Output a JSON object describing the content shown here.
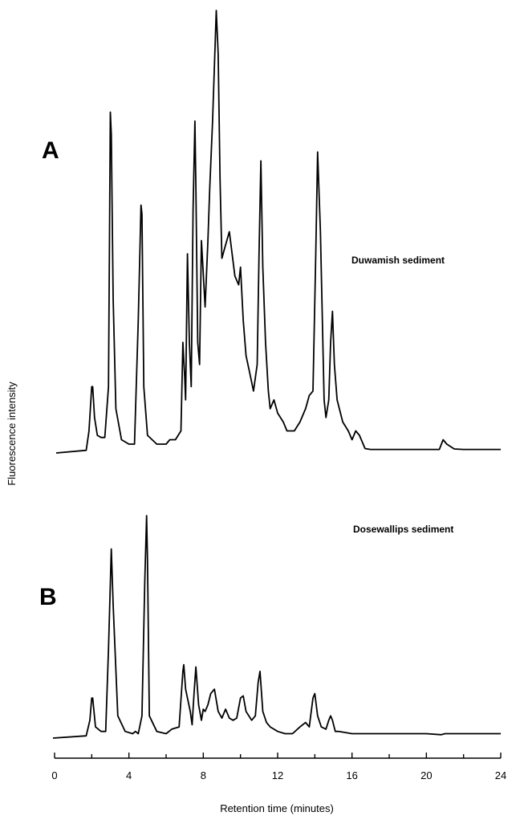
{
  "chart_data": {
    "type": "line",
    "xlabel": "Retention time (minutes)",
    "ylabel": "Fluorescence intensity",
    "xlim": [
      0,
      24
    ],
    "xticks": [
      0,
      4,
      8,
      12,
      16,
      20,
      24
    ],
    "minor_tick_step": 2,
    "grid": false,
    "line_color": "#000000",
    "panels": [
      {
        "letter": "A",
        "label": "Duwamish sediment",
        "ylim": [
          0,
          100
        ],
        "x": [
          0,
          1.7,
          1.85,
          2.0,
          2.05,
          2.15,
          2.3,
          2.5,
          2.7,
          2.9,
          3.0,
          3.05,
          3.15,
          3.3,
          3.6,
          4.0,
          4.3,
          4.5,
          4.65,
          4.7,
          4.8,
          5.0,
          5.5,
          6.0,
          6.2,
          6.5,
          6.8,
          6.9,
          7.0,
          7.05,
          7.15,
          7.25,
          7.35,
          7.45,
          7.55,
          7.6,
          7.7,
          7.8,
          7.9,
          8.1,
          8.25,
          8.35,
          8.5,
          8.7,
          8.8,
          8.9,
          9.0,
          9.2,
          9.4,
          9.7,
          9.9,
          10.0,
          10.15,
          10.3,
          10.5,
          10.7,
          10.9,
          11.0,
          11.1,
          11.2,
          11.35,
          11.5,
          11.6,
          11.8,
          12.0,
          12.3,
          12.5,
          12.9,
          13.2,
          13.5,
          13.7,
          13.9,
          14.05,
          14.15,
          14.3,
          14.5,
          14.6,
          14.75,
          14.85,
          14.95,
          15.05,
          15.2,
          15.5,
          15.8,
          16.0,
          16.2,
          16.4,
          16.7,
          17.0,
          18.0,
          20.0,
          20.7,
          20.9,
          21.1,
          21.5,
          22.0,
          23.0,
          24.0
        ],
        "y": [
          0,
          0.6,
          5,
          15,
          15,
          8,
          4,
          3.5,
          3.5,
          15,
          77,
          72,
          35,
          10,
          3,
          2,
          2,
          30,
          56,
          54,
          15,
          4,
          2,
          2,
          3,
          3,
          5,
          25,
          17,
          12,
          45,
          25,
          15,
          55,
          75,
          60,
          25,
          20,
          48,
          33,
          48,
          60,
          75,
          100,
          90,
          62,
          44,
          47,
          50,
          40,
          38,
          42,
          30,
          22,
          18,
          14,
          20,
          45,
          66,
          42,
          25,
          14,
          10,
          12,
          9,
          7,
          5,
          5,
          7,
          10,
          13,
          14,
          45,
          68,
          50,
          12,
          8,
          12,
          25,
          32,
          20,
          12,
          7,
          5,
          3,
          5,
          4,
          1,
          0.8,
          0.8,
          0.8,
          0.8,
          3,
          2,
          0.9,
          0.8,
          0.8,
          0.8
        ]
      },
      {
        "letter": "B",
        "label": "Dosewallips sediment",
        "ylim": [
          0,
          100
        ],
        "x": [
          0,
          1.7,
          1.9,
          2.0,
          2.05,
          2.2,
          2.5,
          2.75,
          2.9,
          3.05,
          3.15,
          3.4,
          3.8,
          4.2,
          4.35,
          4.5,
          4.7,
          4.85,
          4.95,
          5.0,
          5.1,
          5.5,
          6.0,
          6.3,
          6.7,
          6.9,
          6.95,
          7.05,
          7.15,
          7.3,
          7.4,
          7.5,
          7.6,
          7.75,
          7.9,
          8.0,
          8.1,
          8.25,
          8.4,
          8.6,
          8.8,
          9.0,
          9.2,
          9.4,
          9.6,
          9.8,
          10.0,
          10.15,
          10.3,
          10.6,
          10.8,
          10.95,
          11.05,
          11.2,
          11.4,
          11.6,
          11.8,
          12.0,
          12.4,
          12.8,
          13.2,
          13.5,
          13.7,
          13.9,
          14.0,
          14.15,
          14.35,
          14.6,
          14.75,
          14.85,
          14.95,
          15.1,
          15.3,
          16.0,
          17.0,
          20.0,
          20.8,
          21.0,
          21.5,
          22.0,
          23.0,
          24.0
        ],
        "y": [
          0,
          1,
          8,
          18,
          18,
          5,
          3,
          3,
          40,
          85,
          60,
          10,
          3,
          2,
          3,
          2,
          10,
          70,
          100,
          80,
          10,
          3,
          2,
          4,
          5,
          30,
          33,
          22,
          18,
          12,
          6,
          20,
          32,
          15,
          8,
          13,
          12,
          15,
          20,
          22,
          12,
          9,
          13,
          9,
          8,
          9,
          18,
          19,
          12,
          8,
          10,
          25,
          30,
          12,
          7,
          5,
          4,
          3,
          2,
          2,
          5,
          7,
          5,
          18,
          20,
          10,
          5,
          4,
          8,
          10,
          8,
          3,
          3,
          2,
          2,
          2,
          1.5,
          2,
          2,
          2,
          2,
          2
        ]
      }
    ]
  }
}
